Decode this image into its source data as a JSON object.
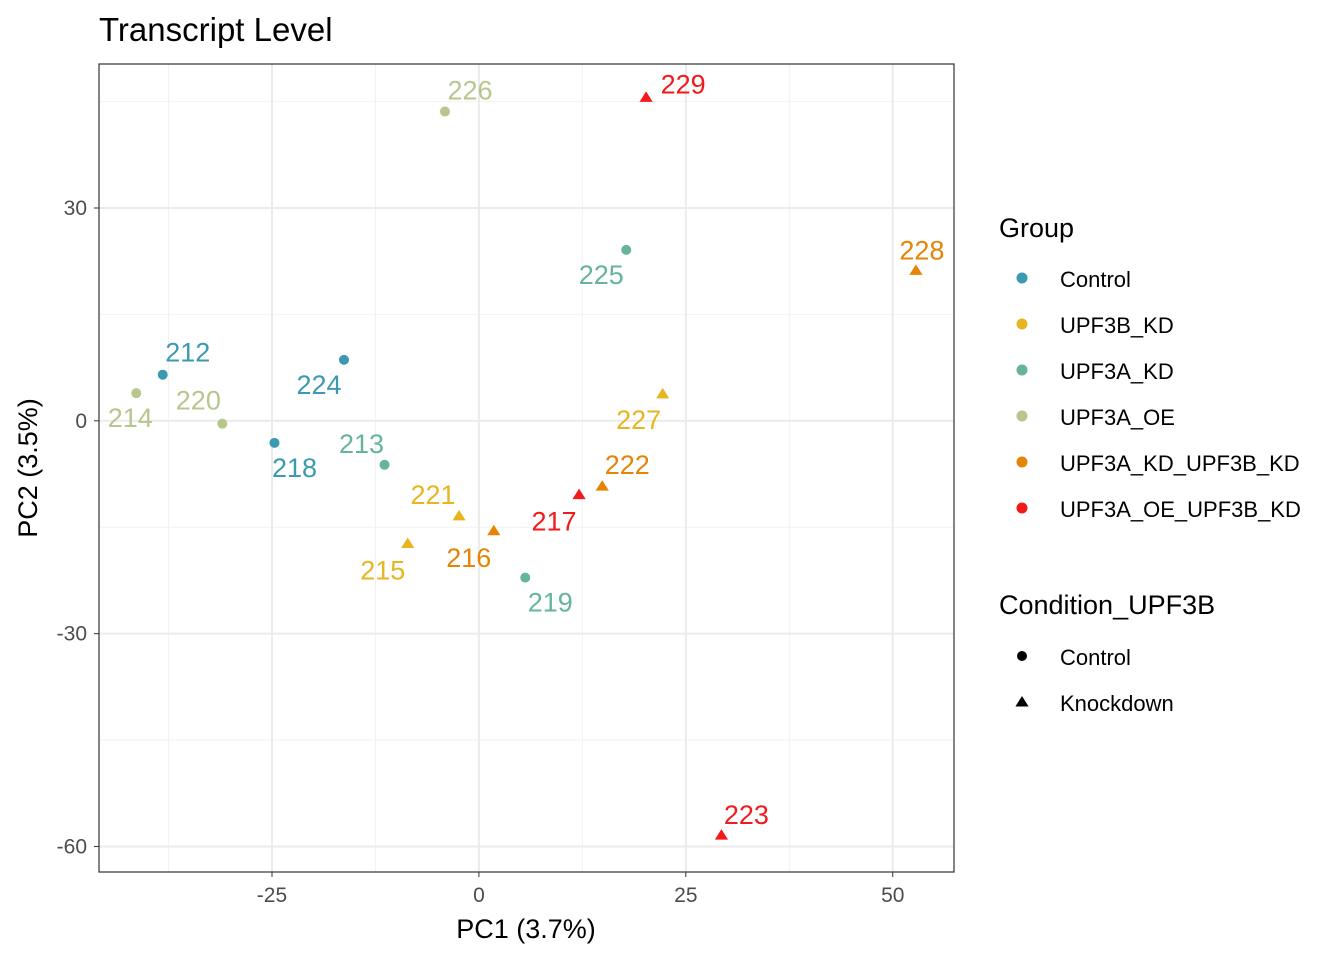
{
  "chart_data": {
    "type": "scatter",
    "title": "Transcript Level",
    "xlabel": "PC1 (3.7%)",
    "ylabel": "PC2 (3.5%)",
    "xlim": [
      -45.9,
      57.4
    ],
    "ylim": [
      -63.6,
      50.3
    ],
    "xticks": [
      -25,
      0,
      25,
      50
    ],
    "yticks": [
      30,
      0,
      -30,
      -60
    ],
    "grid": true,
    "legend_position": "right",
    "group_legend": {
      "title": "Group",
      "entries": [
        {
          "name": "Control",
          "color": "#3A9AB2"
        },
        {
          "name": "UPF3B_KD",
          "color": "#E8B520"
        },
        {
          "name": "UPF3A_KD",
          "color": "#66B59A"
        },
        {
          "name": "UPF3A_OE",
          "color": "#B7C68C"
        },
        {
          "name": "UPF3A_KD_UPF3B_KD",
          "color": "#E58405"
        },
        {
          "name": "UPF3A_OE_UPF3B_KD",
          "color": "#F21A1A"
        }
      ]
    },
    "shape_legend": {
      "title": "Condition_UPF3B",
      "entries": [
        {
          "name": "Control",
          "shape": "circle"
        },
        {
          "name": "Knockdown",
          "shape": "triangle"
        }
      ]
    },
    "points": [
      {
        "label": "212",
        "x": -38.2,
        "y": 6.5,
        "group": "Control",
        "condition": "Control"
      },
      {
        "label": "214",
        "x": -41.4,
        "y": 3.9,
        "group": "UPF3A_OE",
        "condition": "Control"
      },
      {
        "label": "220",
        "x": -31.0,
        "y": -0.4,
        "group": "UPF3A_OE",
        "condition": "Control"
      },
      {
        "label": "224",
        "x": -16.3,
        "y": 8.6,
        "group": "Control",
        "condition": "Control"
      },
      {
        "label": "218",
        "x": -24.7,
        "y": -3.1,
        "group": "Control",
        "condition": "Control"
      },
      {
        "label": "213",
        "x": -11.4,
        "y": -6.2,
        "group": "UPF3A_KD",
        "condition": "Control"
      },
      {
        "label": "221",
        "x": -2.4,
        "y": -13.4,
        "group": "UPF3B_KD",
        "condition": "Knockdown"
      },
      {
        "label": "215",
        "x": -8.6,
        "y": -17.3,
        "group": "UPF3B_KD",
        "condition": "Knockdown"
      },
      {
        "label": "216",
        "x": 1.8,
        "y": -15.5,
        "group": "UPF3A_KD_UPF3B_KD",
        "condition": "Knockdown"
      },
      {
        "label": "219",
        "x": 5.6,
        "y": -22.1,
        "group": "UPF3A_KD",
        "condition": "Control"
      },
      {
        "label": "217",
        "x": 12.1,
        "y": -10.4,
        "group": "UPF3A_OE_UPF3B_KD",
        "condition": "Knockdown"
      },
      {
        "label": "222",
        "x": 14.9,
        "y": -9.2,
        "group": "UPF3A_KD_UPF3B_KD",
        "condition": "Knockdown"
      },
      {
        "label": "227",
        "x": 22.2,
        "y": 3.8,
        "group": "UPF3B_KD",
        "condition": "Knockdown"
      },
      {
        "label": "225",
        "x": 17.8,
        "y": 24.1,
        "group": "UPF3A_KD",
        "condition": "Control"
      },
      {
        "label": "226",
        "x": -4.1,
        "y": 43.6,
        "group": "UPF3A_OE",
        "condition": "Control"
      },
      {
        "label": "229",
        "x": 20.2,
        "y": 45.6,
        "group": "UPF3A_OE_UPF3B_KD",
        "condition": "Knockdown"
      },
      {
        "label": "228",
        "x": 52.8,
        "y": 21.2,
        "group": "UPF3A_KD_UPF3B_KD",
        "condition": "Knockdown"
      },
      {
        "label": "223",
        "x": 29.3,
        "y": -58.4,
        "group": "UPF3A_OE_UPF3B_KD",
        "condition": "Knockdown"
      }
    ]
  }
}
